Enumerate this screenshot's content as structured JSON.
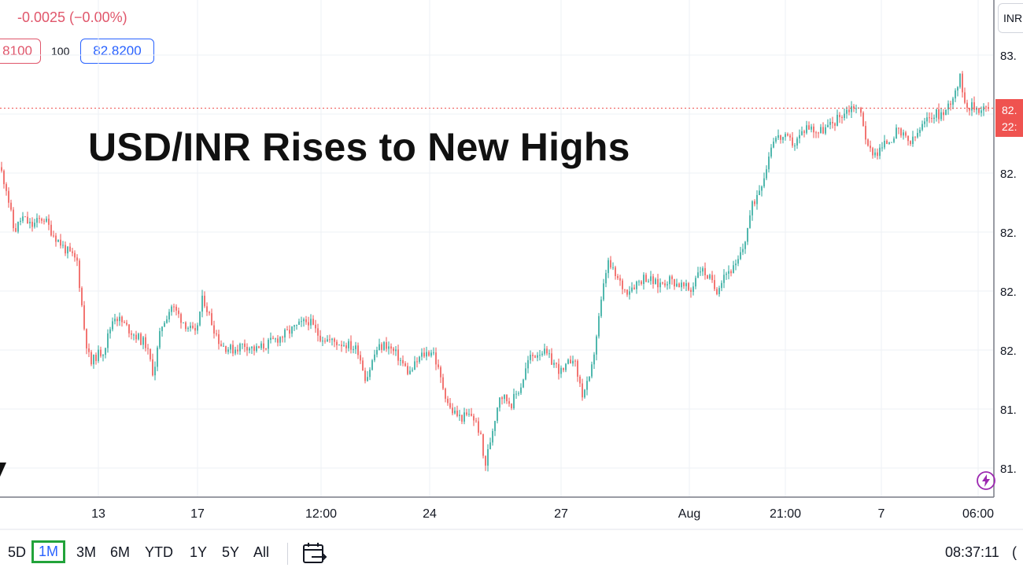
{
  "header": {
    "change": "-0.0025 (−0.00%)",
    "sell_price": "8100",
    "spread": "100",
    "buy_price": "82.8200",
    "symbol_chip": "INR"
  },
  "headline": "USD/INR Rises to New Highs",
  "toolbar": {
    "ranges": [
      "5D",
      "1M",
      "3M",
      "6M",
      "YTD",
      "1Y",
      "5Y",
      "All"
    ],
    "active_range": "1M",
    "clock": "08:37:11",
    "clock_suffix": "("
  },
  "price_tag": {
    "line1": "82.",
    "line2": "22:"
  },
  "colors": {
    "up": "#26a69a",
    "down": "#ef5350",
    "accent": "#2962ff",
    "active_outline": "#22a33a",
    "price_line": "#ef5350"
  },
  "chart_data": {
    "type": "candlestick",
    "x_tick_labels": [
      "13",
      "17",
      "12:00",
      "24",
      "27",
      "Aug",
      "21:00",
      "7",
      "06:00"
    ],
    "y_tick_labels": [
      "83.",
      "82.",
      "82.",
      "82.",
      "82.",
      "82.",
      "81.",
      "81."
    ],
    "y_tick_values": [
      83.0,
      82.8,
      82.6,
      82.4,
      82.2,
      82.0,
      81.8,
      81.6
    ],
    "ylim": [
      81.52,
      83.05
    ],
    "last_price": 82.82,
    "grid": true,
    "close_path": [
      [
        0,
        82.62
      ],
      [
        8,
        82.55
      ],
      [
        18,
        82.4
      ],
      [
        28,
        82.45
      ],
      [
        40,
        82.42
      ],
      [
        55,
        82.45
      ],
      [
        66,
        82.4
      ],
      [
        80,
        82.35
      ],
      [
        98,
        82.3
      ],
      [
        108,
        82.05
      ],
      [
        115,
        81.95
      ],
      [
        122,
        81.98
      ],
      [
        132,
        82.0
      ],
      [
        145,
        82.12
      ],
      [
        160,
        82.08
      ],
      [
        172,
        82.05
      ],
      [
        185,
        82.02
      ],
      [
        195,
        81.92
      ],
      [
        205,
        82.08
      ],
      [
        218,
        82.15
      ],
      [
        232,
        82.1
      ],
      [
        248,
        82.05
      ],
      [
        258,
        82.18
      ],
      [
        268,
        82.1
      ],
      [
        280,
        82.02
      ],
      [
        295,
        82.0
      ],
      [
        310,
        82.02
      ],
      [
        325,
        82.0
      ],
      [
        340,
        82.02
      ],
      [
        360,
        82.05
      ],
      [
        378,
        82.08
      ],
      [
        392,
        82.1
      ],
      [
        405,
        82.05
      ],
      [
        420,
        82.03
      ],
      [
        440,
        82.02
      ],
      [
        455,
        82.0
      ],
      [
        465,
        81.9
      ],
      [
        478,
        82.0
      ],
      [
        490,
        82.02
      ],
      [
        505,
        81.98
      ],
      [
        520,
        81.92
      ],
      [
        535,
        81.98
      ],
      [
        550,
        82.0
      ],
      [
        560,
        81.9
      ],
      [
        572,
        81.8
      ],
      [
        585,
        81.77
      ],
      [
        600,
        81.78
      ],
      [
        610,
        81.72
      ],
      [
        616,
        81.6
      ],
      [
        625,
        81.72
      ],
      [
        635,
        81.85
      ],
      [
        650,
        81.82
      ],
      [
        662,
        81.88
      ],
      [
        672,
        81.97
      ],
      [
        688,
        82.0
      ],
      [
        702,
        81.96
      ],
      [
        715,
        81.92
      ],
      [
        728,
        81.98
      ],
      [
        740,
        81.85
      ],
      [
        750,
        81.9
      ],
      [
        758,
        82.05
      ],
      [
        765,
        82.18
      ],
      [
        772,
        82.3
      ],
      [
        782,
        82.25
      ],
      [
        795,
        82.2
      ],
      [
        805,
        82.22
      ],
      [
        820,
        82.25
      ],
      [
        835,
        82.22
      ],
      [
        850,
        82.24
      ],
      [
        865,
        82.22
      ],
      [
        878,
        82.2
      ],
      [
        888,
        82.28
      ],
      [
        900,
        82.25
      ],
      [
        910,
        82.2
      ],
      [
        920,
        82.26
      ],
      [
        935,
        82.28
      ],
      [
        945,
        82.35
      ],
      [
        955,
        82.48
      ],
      [
        965,
        82.55
      ],
      [
        972,
        82.6
      ],
      [
        982,
        82.72
      ],
      [
        995,
        82.72
      ],
      [
        1010,
        82.7
      ],
      [
        1025,
        82.76
      ],
      [
        1040,
        82.74
      ],
      [
        1055,
        82.76
      ],
      [
        1070,
        82.8
      ],
      [
        1085,
        82.83
      ],
      [
        1095,
        82.8
      ],
      [
        1103,
        82.68
      ],
      [
        1115,
        82.67
      ],
      [
        1125,
        82.7
      ],
      [
        1140,
        82.74
      ],
      [
        1158,
        82.7
      ],
      [
        1170,
        82.75
      ],
      [
        1185,
        82.8
      ],
      [
        1200,
        82.8
      ],
      [
        1212,
        82.87
      ],
      [
        1220,
        82.92
      ],
      [
        1228,
        82.83
      ],
      [
        1240,
        82.82
      ],
      [
        1258,
        82.82
      ]
    ]
  }
}
